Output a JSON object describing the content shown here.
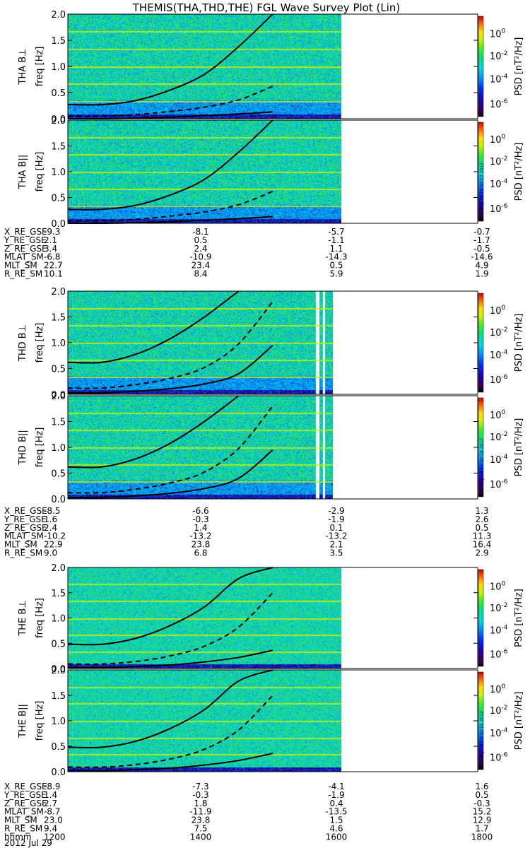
{
  "title": "THEMIS(THA,THD,THE) FGL Wave Survey Plot (Lin)",
  "colorbar": {
    "label": "PSD [nT²/Hz]",
    "ticks": [
      {
        "text": "10",
        "exp": "0"
      },
      {
        "text": "10",
        "exp": "-2"
      },
      {
        "text": "10",
        "exp": "-4"
      },
      {
        "text": "10",
        "exp": "-6"
      }
    ]
  },
  "ytick_labels": [
    "0.0",
    "0.5",
    "1.0",
    "1.5",
    "2.0"
  ],
  "freq_label": "freq [Hz]",
  "chart_data": [
    {
      "type": "heatmap",
      "probe": "THA",
      "component": "perp",
      "panel_label": "THA B⊥",
      "ylabel": "freq [Hz]",
      "ylim": [
        0,
        2.0
      ],
      "colorscale": "log PSD, 1e-6 to ~1e1 nT²/Hz",
      "curves": {
        "solid_upper": [
          0.27,
          0.27,
          0.35,
          0.55,
          0.85,
          1.38,
          2.05
        ],
        "dashed": [
          0.05,
          0.05,
          0.08,
          0.14,
          0.22,
          0.36,
          0.62
        ],
        "solid_lower": [
          0.0,
          0.0,
          0.01,
          0.03,
          0.06,
          0.09,
          0.13
        ]
      },
      "data_end_time": "1600"
    },
    {
      "type": "heatmap",
      "probe": "THA",
      "component": "parallel",
      "panel_label": "THA B||",
      "ylabel": "freq [Hz]",
      "ylim": [
        0,
        2.0
      ],
      "curves": {
        "solid_upper": [
          0.27,
          0.27,
          0.35,
          0.55,
          0.85,
          1.38,
          2.05
        ],
        "dashed": [
          0.05,
          0.05,
          0.08,
          0.14,
          0.22,
          0.36,
          0.62
        ],
        "solid_lower": [
          0.0,
          0.0,
          0.01,
          0.03,
          0.06,
          0.09,
          0.13
        ]
      },
      "data_end_time": "1600"
    },
    {
      "type": "heatmap",
      "probe": "THD",
      "component": "perp",
      "panel_label": "THD B⊥",
      "ylabel": "freq [Hz]",
      "ylim": [
        0,
        2.0
      ],
      "curves": {
        "solid_upper": [
          0.62,
          0.62,
          0.78,
          1.08,
          1.5,
          2.05
        ],
        "dashed": [
          0.12,
          0.12,
          0.19,
          0.31,
          0.52,
          0.98,
          1.8
        ],
        "solid_lower": [
          0.03,
          0.03,
          0.06,
          0.11,
          0.2,
          0.4,
          0.95
        ]
      },
      "data_end_time": "1588"
    },
    {
      "type": "heatmap",
      "probe": "THD",
      "component": "parallel",
      "panel_label": "THD B||",
      "ylabel": "freq [Hz]",
      "ylim": [
        0,
        2.0
      ],
      "curves": {
        "solid_upper": [
          0.62,
          0.62,
          0.78,
          1.08,
          1.5,
          2.05
        ],
        "dashed": [
          0.12,
          0.12,
          0.19,
          0.31,
          0.52,
          0.98,
          1.8
        ],
        "solid_lower": [
          0.03,
          0.03,
          0.06,
          0.11,
          0.2,
          0.4,
          0.95
        ]
      },
      "data_end_time": "1588"
    },
    {
      "type": "heatmap",
      "probe": "THE",
      "component": "perp",
      "panel_label": "THE B⊥",
      "ylabel": "freq [Hz]",
      "ylim": [
        0,
        2.0
      ],
      "curves": {
        "solid_upper": [
          0.48,
          0.48,
          0.6,
          0.85,
          1.22,
          1.78,
          2.05
        ],
        "dashed": [
          0.09,
          0.09,
          0.14,
          0.25,
          0.44,
          0.82,
          1.5
        ],
        "solid_lower": [
          0.02,
          0.02,
          0.04,
          0.07,
          0.13,
          0.22,
          0.36
        ]
      },
      "data_end_time": "1600"
    },
    {
      "type": "heatmap",
      "probe": "THE",
      "component": "parallel",
      "panel_label": "THE B||",
      "ylabel": "freq [Hz]",
      "ylim": [
        0,
        2.0
      ],
      "curves": {
        "solid_upper": [
          0.48,
          0.48,
          0.6,
          0.85,
          1.22,
          1.78,
          2.05
        ],
        "dashed": [
          0.09,
          0.09,
          0.14,
          0.25,
          0.44,
          0.82,
          1.5
        ],
        "solid_lower": [
          0.02,
          0.02,
          0.04,
          0.07,
          0.13,
          0.22,
          0.36
        ]
      },
      "data_end_time": "1600"
    }
  ],
  "curve_times": [
    "1200",
    "1250",
    "1300",
    "1350",
    "1400",
    "1450",
    "1500",
    "1550",
    "1600"
  ],
  "ephemeris": [
    {
      "probe": "THA",
      "rows": [
        {
          "name": "X_RE_GSE",
          "values": [
            "-9.3",
            "-8.1",
            "-5.7",
            "-0.7"
          ]
        },
        {
          "name": "Y_RE_GSE",
          "values": [
            "2.1",
            "0.5",
            "-1.1",
            "-1.7"
          ]
        },
        {
          "name": "Z_RE_GSE",
          "values": [
            "3.4",
            "2.4",
            "1.1",
            "-0.5"
          ]
        },
        {
          "name": "MLAT_SM",
          "values": [
            "-6.8",
            "-10.9",
            "-14.3",
            "-14.6"
          ]
        },
        {
          "name": "MLT_SM",
          "values": [
            "22.7",
            "23.4",
            "0.5",
            "4.9"
          ]
        },
        {
          "name": "R_RE_SM",
          "values": [
            "10.1",
            "8.4",
            "5.9",
            "1.9"
          ]
        }
      ]
    },
    {
      "probe": "THD",
      "rows": [
        {
          "name": "X_RE_GSE",
          "values": [
            "-8.5",
            "-6.6",
            "-2.9",
            "1.3"
          ]
        },
        {
          "name": "Y_RE_GSE",
          "values": [
            "1.6",
            "-0.3",
            "-1.9",
            "2.6"
          ]
        },
        {
          "name": "Z_RE_GSE",
          "values": [
            "2.4",
            "1.4",
            "0.1",
            "0.5"
          ]
        },
        {
          "name": "MLAT_SM",
          "values": [
            "-10.2",
            "-13.2",
            "-13.2",
            "11.3"
          ]
        },
        {
          "name": "MLT_SM",
          "values": [
            "22.9",
            "23.8",
            "2.1",
            "16.4"
          ]
        },
        {
          "name": "R_RE_SM",
          "values": [
            "9.0",
            "6.8",
            "3.5",
            "2.9"
          ]
        }
      ]
    },
    {
      "probe": "THE",
      "rows": [
        {
          "name": "X_RE_GSE",
          "values": [
            "-8.9",
            "-7.3",
            "-4.1",
            "1.6"
          ]
        },
        {
          "name": "Y_RE_GSE",
          "values": [
            "1.4",
            "-0.3",
            "-1.9",
            "0.5"
          ]
        },
        {
          "name": "Z_RE_GSE",
          "values": [
            "2.7",
            "1.8",
            "0.4",
            "-0.3"
          ]
        },
        {
          "name": "MLAT_SM",
          "values": [
            "-8.7",
            "-11.9",
            "-13.5",
            "15.2"
          ]
        },
        {
          "name": "MLT_SM",
          "values": [
            "23.0",
            "23.8",
            "1.5",
            "12.9"
          ]
        },
        {
          "name": "R_RE_SM",
          "values": [
            "9.4",
            "7.5",
            "4.6",
            "1.7"
          ]
        },
        {
          "name": "hhmm",
          "values": [
            "1200",
            "1400",
            "1600",
            "1800"
          ]
        }
      ]
    }
  ],
  "date_label": "2012 Jul 29",
  "stamps": [
    "Wed Sep 19 15:32:17 2012",
    "Wed Sep 19 15:32:18 2012",
    "Wed Sep 19 15:32:19 2012"
  ]
}
